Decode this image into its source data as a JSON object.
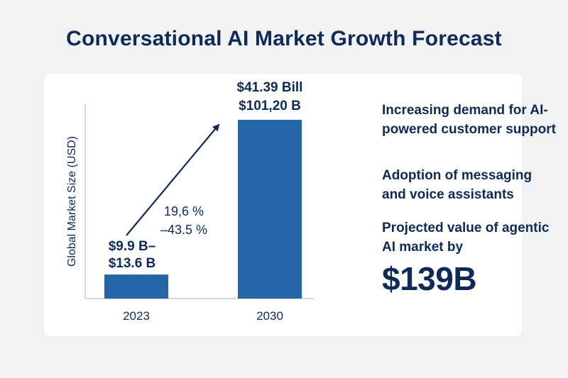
{
  "title": "Conversational AI Market Growth Forecast",
  "colors": {
    "background": "#f1f2f3",
    "card": "#ffffff",
    "bar": "#2466a8",
    "text": "#0f2a56",
    "axis": "#c9ced6"
  },
  "chart_data": {
    "type": "bar",
    "categories": [
      "2023",
      "2030"
    ],
    "values": [
      13.6,
      101.2
    ],
    "ylabel": "Global Market Size (USD)",
    "xlabel": "",
    "ylim": [
      0,
      110
    ],
    "grid": false,
    "bar_labels": [
      [
        "$9.9 B–",
        "$13.6 B"
      ],
      [
        "$41.39 Bill",
        "$101,20 B"
      ]
    ],
    "growth_annotation": [
      "19,6 %",
      "–43.5 %"
    ],
    "growth_arrow": {
      "from_category": "2023",
      "to_category": "2030"
    }
  },
  "highlights": {
    "point_1": "Increasing demand for AI-powered customer support",
    "point_2": "Adoption of messaging and voice assistants",
    "point_3": "Projected value of agentic AI market by",
    "value": "$139B"
  }
}
